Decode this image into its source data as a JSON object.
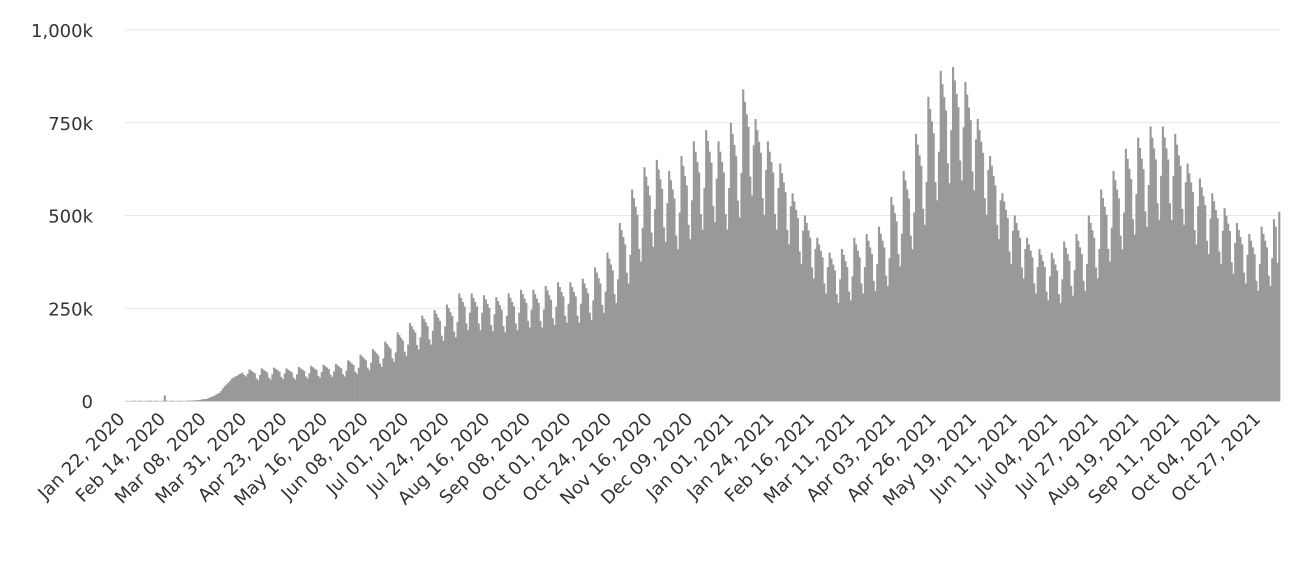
{
  "chart_data": {
    "type": "bar",
    "ylim": [
      0,
      1000
    ],
    "yticks": [
      {
        "value": 0,
        "label": "0"
      },
      {
        "value": 250,
        "label": "250k"
      },
      {
        "value": 500,
        "label": "500k"
      },
      {
        "value": 750,
        "label": "750k"
      },
      {
        "value": 1000,
        "label": "1,000k"
      }
    ],
    "grid": true,
    "color": "#999999",
    "categories": [
      "Jan 22, 2020",
      null,
      null,
      null,
      null,
      null,
      null,
      null,
      null,
      null,
      null,
      null,
      null,
      null,
      null,
      null,
      null,
      null,
      null,
      null,
      null,
      null,
      null,
      "Feb 14, 2020",
      null,
      null,
      null,
      null,
      null,
      null,
      null,
      null,
      null,
      null,
      null,
      null,
      null,
      null,
      null,
      null,
      null,
      null,
      null,
      null,
      null,
      null,
      "Mar 08, 2020",
      null,
      null,
      null,
      null,
      null,
      null,
      null,
      null,
      null,
      null,
      null,
      null,
      null,
      null,
      null,
      null,
      null,
      null,
      null,
      null,
      null,
      null,
      "Mar 31, 2020",
      null,
      null,
      null,
      null,
      null,
      null,
      null,
      null,
      null,
      null,
      null,
      null,
      null,
      null,
      null,
      null,
      null,
      null,
      null,
      null,
      null,
      null,
      "Apr 23, 2020",
      null,
      null,
      null,
      null,
      null,
      null,
      null,
      null,
      null,
      null,
      null,
      null,
      null,
      null,
      null,
      null,
      null,
      null,
      null,
      null,
      null,
      null,
      "May 16, 2020",
      null,
      null,
      null,
      null,
      null,
      null,
      null,
      null,
      null,
      null,
      null,
      null,
      null,
      null,
      null,
      null,
      null,
      null,
      null,
      null,
      null,
      null,
      "Jun 08, 2020",
      null,
      null,
      null,
      null,
      null,
      null,
      null,
      null,
      null,
      null,
      null,
      null,
      null,
      null,
      null,
      null,
      null,
      null,
      null,
      null,
      null,
      null,
      "Jul 01, 2020",
      null,
      null,
      null,
      null,
      null,
      null,
      null,
      null,
      null,
      null,
      null,
      null,
      null,
      null,
      null,
      null,
      null,
      null,
      null,
      null,
      null,
      null,
      "Jul 24, 2020",
      null,
      null,
      null,
      null,
      null,
      null,
      null,
      null,
      null,
      null,
      null,
      null,
      null,
      null,
      null,
      null,
      null,
      null,
      null,
      null,
      null,
      null,
      "Aug 16, 2020",
      null,
      null,
      null,
      null,
      null,
      null,
      null,
      null,
      null,
      null,
      null,
      null,
      null,
      null,
      null,
      null,
      null,
      null,
      null,
      null,
      null,
      null,
      "Sep 08, 2020",
      null,
      null,
      null,
      null,
      null,
      null,
      null,
      null,
      null,
      null,
      null,
      null,
      null,
      null,
      null,
      null,
      null,
      null,
      null,
      null,
      null,
      null,
      "Oct 01, 2020",
      null,
      null,
      null,
      null,
      null,
      null,
      null,
      null,
      null,
      null,
      null,
      null,
      null,
      null,
      null,
      null,
      null,
      null,
      null,
      null,
      null,
      null,
      "Oct 24, 2020",
      null,
      null,
      null,
      null,
      null,
      null,
      null,
      null,
      null,
      null,
      null,
      null,
      null,
      null,
      null,
      null,
      null,
      null,
      null,
      null,
      null,
      null,
      "Nov 16, 2020",
      null,
      null,
      null,
      null,
      null,
      null,
      null,
      null,
      null,
      null,
      null,
      null,
      null,
      null,
      null,
      null,
      null,
      null,
      null,
      null,
      null,
      null,
      "Dec 09, 2020",
      null,
      null,
      null,
      null,
      null,
      null,
      null,
      null,
      null,
      null,
      null,
      null,
      null,
      null,
      null,
      null,
      null,
      null,
      null,
      null,
      null,
      null,
      "Jan 01, 2021",
      null,
      null,
      null,
      null,
      null,
      null,
      null,
      null,
      null,
      null,
      null,
      null,
      null,
      null,
      null,
      null,
      null,
      null,
      null,
      null,
      null,
      null,
      "Jan 24, 2021",
      null,
      null,
      null,
      null,
      null,
      null,
      null,
      null,
      null,
      null,
      null,
      null,
      null,
      null,
      null,
      null,
      null,
      null,
      null,
      null,
      null,
      null,
      "Feb 16, 2021",
      null,
      null,
      null,
      null,
      null,
      null,
      null,
      null,
      null,
      null,
      null,
      null,
      null,
      null,
      null,
      null,
      null,
      null,
      null,
      null,
      null,
      null,
      "Mar 11, 2021",
      null,
      null,
      null,
      null,
      null,
      null,
      null,
      null,
      null,
      null,
      null,
      null,
      null,
      null,
      null,
      null,
      null,
      null,
      null,
      null,
      null,
      null,
      "Apr 03, 2021",
      null,
      null,
      null,
      null,
      null,
      null,
      null,
      null,
      null,
      null,
      null,
      null,
      null,
      null,
      null,
      null,
      null,
      null,
      null,
      null,
      null,
      null,
      "Apr 26, 2021",
      null,
      null,
      null,
      null,
      null,
      null,
      null,
      null,
      null,
      null,
      null,
      null,
      null,
      null,
      null,
      null,
      null,
      null,
      null,
      null,
      null,
      null,
      "May 19, 2021",
      null,
      null,
      null,
      null,
      null,
      null,
      null,
      null,
      null,
      null,
      null,
      null,
      null,
      null,
      null,
      null,
      null,
      null,
      null,
      null,
      null,
      null,
      "Jun 11, 2021",
      null,
      null,
      null,
      null,
      null,
      null,
      null,
      null,
      null,
      null,
      null,
      null,
      null,
      null,
      null,
      null,
      null,
      null,
      null,
      null,
      null,
      null,
      "Jul 04, 2021",
      null,
      null,
      null,
      null,
      null,
      null,
      null,
      null,
      null,
      null,
      null,
      null,
      null,
      null,
      null,
      null,
      null,
      null,
      null,
      null,
      null,
      null,
      "Jul 27, 2021",
      null,
      null,
      null,
      null,
      null,
      null,
      null,
      null,
      null,
      null,
      null,
      null,
      null,
      null,
      null,
      null,
      null,
      null,
      null,
      null,
      null,
      null,
      "Aug 19, 2021",
      null,
      null,
      null,
      null,
      null,
      null,
      null,
      null,
      null,
      null,
      null,
      null,
      null,
      null,
      null,
      null,
      null,
      null,
      null,
      null,
      null,
      null,
      "Sep 11, 2021",
      null,
      null,
      null,
      null,
      null,
      null,
      null,
      null,
      null,
      null,
      null,
      null,
      null,
      null,
      null,
      null,
      null,
      null,
      null,
      null,
      null,
      null,
      "Oct 04, 2021",
      null,
      null,
      null,
      null,
      null,
      null,
      null,
      null,
      null,
      null,
      null,
      null,
      null,
      null,
      null,
      null,
      null,
      null,
      null,
      null,
      null,
      null,
      "Oct 27, 2021",
      null,
      null,
      null,
      null,
      null,
      null,
      null,
      null,
      null,
      null
    ],
    "values": [
      0,
      0,
      0,
      0,
      0,
      1,
      0,
      0,
      1,
      0,
      0,
      0,
      1,
      0,
      1,
      0,
      0,
      1,
      0,
      0,
      0,
      1,
      15,
      1,
      0,
      0,
      1,
      0,
      0,
      0,
      1,
      0,
      0,
      0,
      0,
      1,
      1,
      1,
      1,
      2,
      2,
      2,
      3,
      4,
      5,
      5,
      6,
      8,
      10,
      12,
      14,
      17,
      20,
      22,
      27,
      34,
      40,
      45,
      49,
      54,
      60,
      63,
      66,
      68,
      72,
      74,
      76,
      70,
      66,
      73,
      85,
      82,
      78,
      75,
      61,
      56,
      70,
      88,
      84,
      81,
      77,
      63,
      58,
      72,
      90,
      86,
      83,
      79,
      65,
      59,
      74,
      88,
      84,
      81,
      77,
      63,
      58,
      72,
      92,
      88,
      85,
      81,
      66,
      61,
      75,
      95,
      91,
      87,
      84,
      68,
      63,
      78,
      98,
      94,
      90,
      86,
      71,
      65,
      80,
      100,
      96,
      92,
      88,
      72,
      66,
      82,
      110,
      106,
      101,
      97,
      79,
      73,
      90,
      125,
      120,
      115,
      110,
      90,
      83,
      103,
      140,
      134,
      129,
      123,
      101,
      92,
      115,
      160,
      154,
      147,
      141,
      115,
      106,
      131,
      185,
      178,
      170,
      163,
      133,
      122,
      152,
      210,
      202,
      193,
      185,
      151,
      139,
      172,
      230,
      221,
      212,
      202,
      166,
      152,
      189,
      245,
      235,
      225,
      216,
      176,
      162,
      201,
      260,
      250,
      239,
      229,
      187,
      172,
      213,
      290,
      278,
      267,
      255,
      209,
      191,
      238,
      290,
      278,
      267,
      255,
      209,
      191,
      238,
      285,
      274,
      262,
      251,
      205,
      188,
      234,
      280,
      269,
      258,
      246,
      202,
      185,
      230,
      290,
      278,
      267,
      255,
      209,
      191,
      238,
      300,
      288,
      276,
      264,
      216,
      198,
      246,
      300,
      288,
      276,
      264,
      216,
      198,
      246,
      310,
      298,
      285,
      273,
      223,
      205,
      254,
      320,
      307,
      294,
      282,
      230,
      211,
      262,
      320,
      307,
      294,
      282,
      230,
      211,
      262,
      330,
      317,
      304,
      290,
      238,
      218,
      271,
      360,
      346,
      331,
      317,
      259,
      238,
      295,
      400,
      384,
      368,
      352,
      288,
      264,
      328,
      480,
      461,
      442,
      422,
      346,
      317,
      394,
      570,
      547,
      524,
      502,
      410,
      376,
      467,
      630,
      605,
      580,
      554,
      454,
      416,
      517,
      650,
      624,
      598,
      572,
      468,
      429,
      533,
      620,
      595,
      570,
      546,
      446,
      409,
      508,
      660,
      634,
      607,
      581,
      475,
      436,
      541,
      700,
      672,
      644,
      616,
      504,
      462,
      574,
      730,
      701,
      672,
      642,
      526,
      482,
      599,
      700,
      672,
      644,
      616,
      504,
      462,
      574,
      750,
      720,
      690,
      660,
      540,
      495,
      615,
      840,
      806,
      773,
      739,
      605,
      554,
      689,
      760,
      730,
      699,
      669,
      547,
      502,
      623,
      700,
      672,
      644,
      616,
      504,
      462,
      574,
      640,
      614,
      589,
      563,
      461,
      422,
      525,
      560,
      538,
      515,
      493,
      403,
      370,
      459,
      500,
      480,
      460,
      440,
      360,
      330,
      410,
      440,
      422,
      405,
      387,
      317,
      290,
      361,
      400,
      384,
      368,
      352,
      288,
      264,
      328,
      410,
      394,
      377,
      361,
      295,
      271,
      336,
      440,
      422,
      405,
      387,
      317,
      290,
      361,
      450,
      432,
      414,
      396,
      324,
      297,
      369,
      470,
      451,
      432,
      414,
      338,
      310,
      385,
      550,
      528,
      506,
      484,
      396,
      363,
      451,
      620,
      595,
      570,
      546,
      446,
      409,
      508,
      720,
      691,
      662,
      634,
      518,
      475,
      590,
      820,
      787,
      754,
      722,
      590,
      541,
      672,
      890,
      854,
      819,
      783,
      641,
      587,
      730,
      900,
      864,
      828,
      792,
      648,
      594,
      738,
      860,
      826,
      791,
      757,
      619,
      568,
      705,
      760,
      730,
      699,
      669,
      547,
      502,
      623,
      660,
      634,
      607,
      581,
      475,
      436,
      541,
      560,
      538,
      515,
      493,
      403,
      370,
      459,
      500,
      480,
      460,
      440,
      360,
      330,
      410,
      440,
      422,
      405,
      387,
      317,
      290,
      361,
      410,
      394,
      377,
      361,
      295,
      271,
      336,
      400,
      384,
      368,
      352,
      288,
      264,
      328,
      430,
      413,
      396,
      378,
      310,
      284,
      353,
      450,
      432,
      414,
      396,
      324,
      297,
      369,
      500,
      480,
      460,
      440,
      360,
      330,
      410,
      570,
      547,
      524,
      502,
      410,
      376,
      467,
      620,
      595,
      570,
      546,
      446,
      409,
      508,
      680,
      653,
      626,
      598,
      490,
      449,
      558,
      710,
      682,
      653,
      625,
      511,
      469,
      582,
      740,
      710,
      681,
      651,
      533,
      488,
      607,
      740,
      710,
      681,
      651,
      533,
      488,
      607,
      720,
      691,
      662,
      634,
      518,
      475,
      590,
      640,
      614,
      589,
      563,
      461,
      422,
      525,
      600,
      576,
      552,
      528,
      432,
      396,
      492,
      560,
      538,
      515,
      493,
      403,
      370,
      459,
      520,
      499,
      478,
      458,
      374,
      343,
      426,
      480,
      461,
      442,
      422,
      346,
      317,
      394,
      450,
      432,
      414,
      396,
      324,
      297,
      369,
      470,
      451,
      432,
      414,
      338,
      310,
      385,
      490,
      470,
      372,
      510
    ]
  }
}
